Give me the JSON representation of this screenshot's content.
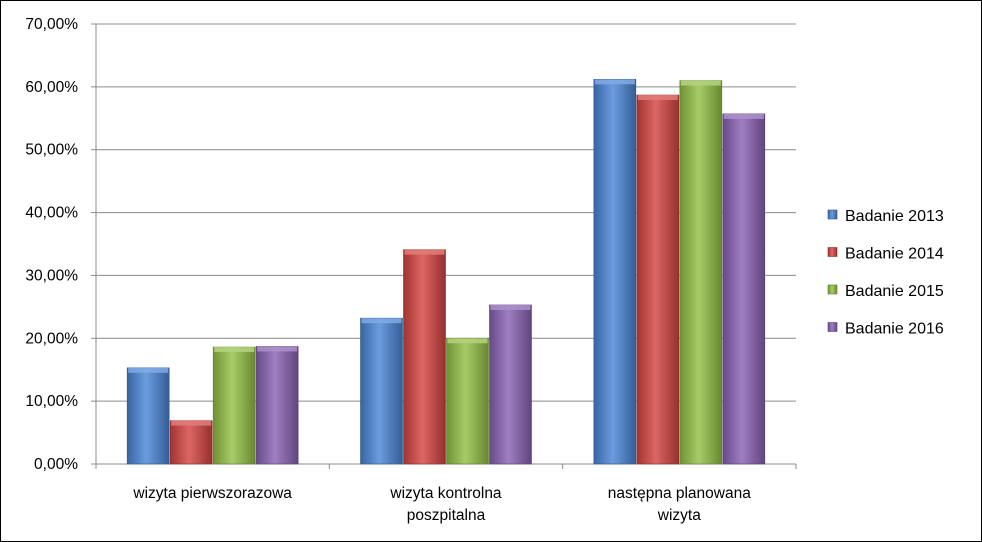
{
  "chart_data": {
    "type": "bar",
    "categories": [
      [
        "wizyta pierwszorazowa"
      ],
      [
        "wizyta kontrolna",
        "poszpitalna"
      ],
      [
        "następna planowana",
        "wizyta"
      ]
    ],
    "series": [
      {
        "name": "Badanie 2013",
        "values": [
          15.3,
          23.2,
          61.2
        ],
        "color": "#4a86d8"
      },
      {
        "name": "Badanie 2014",
        "values": [
          6.9,
          34.1,
          58.7
        ],
        "color": "#d64541"
      },
      {
        "name": "Badanie 2015",
        "values": [
          18.6,
          20.0,
          61.0
        ],
        "color": "#94c146"
      },
      {
        "name": "Badanie 2016",
        "values": [
          18.7,
          25.3,
          55.7
        ],
        "color": "#8a62b4"
      }
    ],
    "y_ticks": [
      "0,00%",
      "10,00%",
      "20,00%",
      "30,00%",
      "40,00%",
      "50,00%",
      "60,00%",
      "70,00%"
    ],
    "ylim": [
      0,
      70
    ],
    "grid": true,
    "legend_position": "right"
  }
}
